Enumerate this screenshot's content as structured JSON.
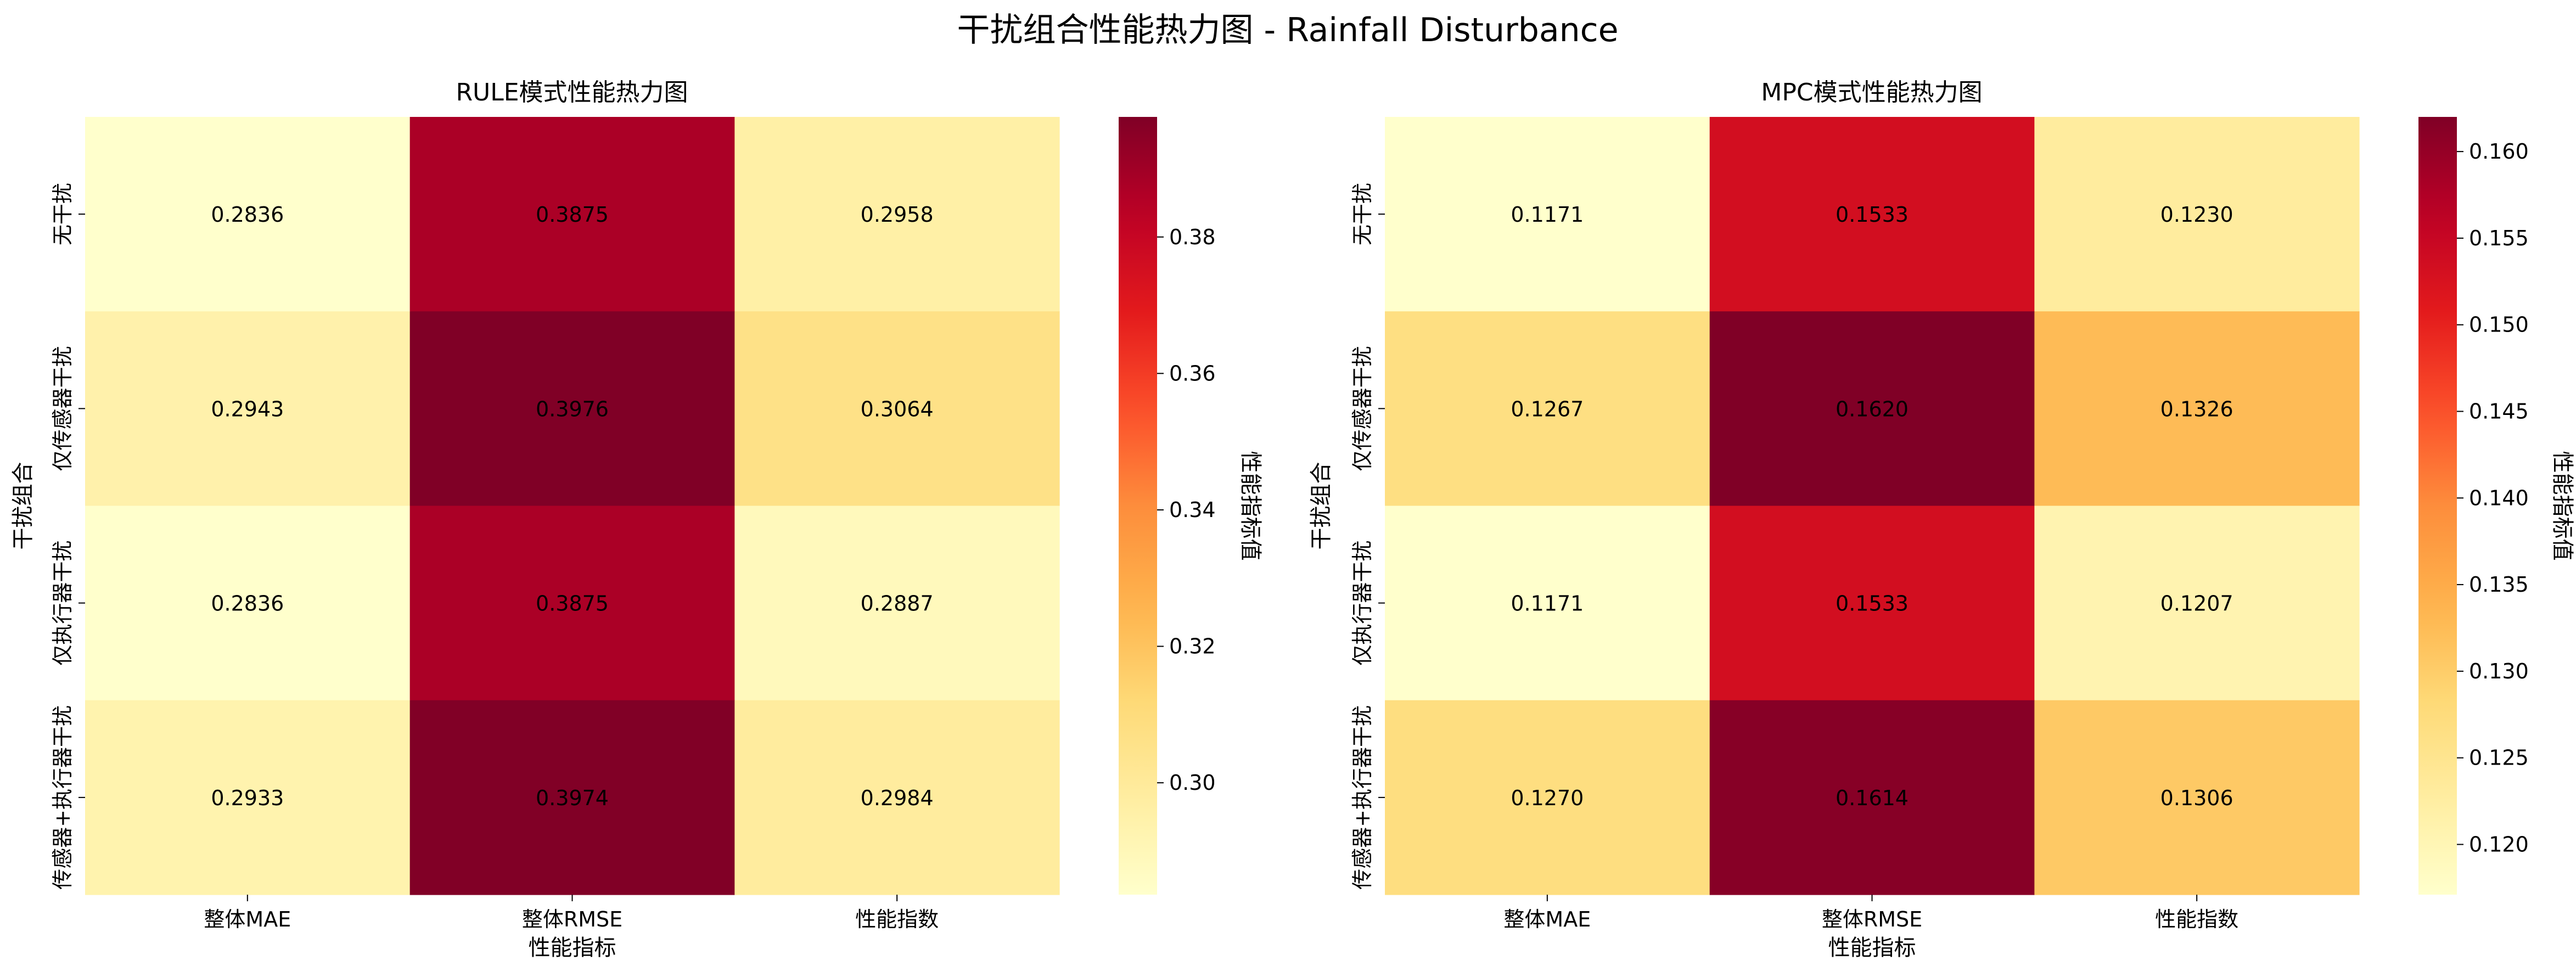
{
  "figure": {
    "suptitle": "干扰组合性能热力图 - Rainfall Disturbance"
  },
  "colormap": [
    "#ffffcc",
    "#ffeda0",
    "#fed976",
    "#feb24c",
    "#fd8d3c",
    "#fc4e2a",
    "#e31a1c",
    "#bd0026",
    "#800026"
  ],
  "chart_data": [
    {
      "type": "heatmap",
      "title": "RULE模式性能热力图",
      "xlabel": "性能指标",
      "ylabel": "干扰组合",
      "columns": [
        "整体MAE",
        "整体RMSE",
        "性能指数"
      ],
      "rows": [
        "无干扰",
        "仅传感器干扰",
        "仅执行器干扰",
        "传感器+执行器干扰"
      ],
      "values": [
        [
          0.2836,
          0.3875,
          0.2958
        ],
        [
          0.2943,
          0.3976,
          0.3064
        ],
        [
          0.2836,
          0.3875,
          0.2887
        ],
        [
          0.2933,
          0.3974,
          0.2984
        ]
      ],
      "colorbar": {
        "label": "性能指标值",
        "range": [
          0.2836,
          0.3976
        ],
        "ticks": [
          0.3,
          0.32,
          0.34,
          0.36,
          0.38
        ],
        "tick_labels": [
          "0.30",
          "0.32",
          "0.34",
          "0.36",
          "0.38"
        ]
      }
    },
    {
      "type": "heatmap",
      "title": "MPC模式性能热力图",
      "xlabel": "性能指标",
      "ylabel": "干扰组合",
      "columns": [
        "整体MAE",
        "整体RMSE",
        "性能指数"
      ],
      "rows": [
        "无干扰",
        "仅传感器干扰",
        "仅执行器干扰",
        "传感器+执行器干扰"
      ],
      "values": [
        [
          0.1171,
          0.1533,
          0.123
        ],
        [
          0.1267,
          0.162,
          0.1326
        ],
        [
          0.1171,
          0.1533,
          0.1207
        ],
        [
          0.127,
          0.1614,
          0.1306
        ]
      ],
      "colorbar": {
        "label": "性能指标值",
        "range": [
          0.1171,
          0.162
        ],
        "ticks": [
          0.12,
          0.125,
          0.13,
          0.135,
          0.14,
          0.145,
          0.15,
          0.155,
          0.16
        ],
        "tick_labels": [
          "0.120",
          "0.125",
          "0.130",
          "0.135",
          "0.140",
          "0.145",
          "0.150",
          "0.155",
          "0.160"
        ]
      }
    }
  ]
}
